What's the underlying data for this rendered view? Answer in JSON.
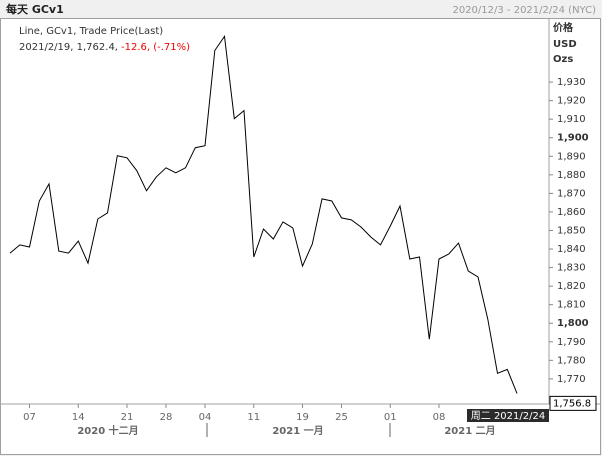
{
  "chart_data": {
    "type": "line",
    "title": "每天 GCv1",
    "date_range": "2020/12/3 - 2021/2/24 (NYC)",
    "legend_line": "Line, GCv1, Trade Price(Last)",
    "legend_info": "2021/2/19, 1,762.4,",
    "legend_change": "-12.6, (-.71%)",
    "y_axis_units": [
      "价格",
      "USD",
      "Ozs"
    ],
    "categories": [
      null,
      null,
      "07",
      null,
      null,
      null,
      null,
      "14",
      null,
      null,
      null,
      null,
      "21",
      null,
      null,
      null,
      "28",
      null,
      null,
      null,
      "04",
      null,
      null,
      null,
      null,
      "11",
      null,
      null,
      null,
      null,
      "19",
      null,
      null,
      null,
      "25",
      null,
      null,
      null,
      null,
      "01",
      null,
      null,
      null,
      null,
      "08",
      null,
      null,
      null,
      null,
      null,
      null,
      null,
      null
    ],
    "x_group_labels": [
      "2020 十二月",
      "2021 一月",
      "2021 二月"
    ],
    "series": [
      {
        "name": "GCv1",
        "color": "#000000",
        "values": [
          1837.8,
          1842.2,
          1841.1,
          1865.9,
          1875.1,
          1838.9,
          1837.8,
          1844.3,
          1832.4,
          1856.2,
          1859.5,
          1890.3,
          1889.2,
          1882.2,
          1871.4,
          1878.9,
          1883.8,
          1881.1,
          1883.8,
          1894.6,
          1895.7,
          1947.0,
          1954.6,
          1910.3,
          1914.6,
          1835.7,
          1850.8,
          1845.4,
          1854.6,
          1851.4,
          1830.8,
          1842.7,
          1867.0,
          1865.9,
          1856.8,
          1855.7,
          1851.9,
          1846.5,
          1842.2,
          1852.4,
          1863.2,
          1834.6,
          1835.7,
          1791.4,
          1834.6,
          1837.3,
          1843.2,
          1828.1,
          1824.9,
          1802.2,
          1773.0,
          1775.1,
          1762.2
        ]
      }
    ],
    "ylim": [
      1757,
      1964
    ],
    "yticks": [
      {
        "value": 1770,
        "label": "1,770"
      },
      {
        "value": 1780,
        "label": "1,780"
      },
      {
        "value": 1790,
        "label": "1,790"
      },
      {
        "value": 1800,
        "label": "1,800"
      },
      {
        "value": 1810,
        "label": "1,810"
      },
      {
        "value": 1820,
        "label": "1,820"
      },
      {
        "value": 1830,
        "label": "1,830"
      },
      {
        "value": 1840,
        "label": "1,840"
      },
      {
        "value": 1850,
        "label": "1,850"
      },
      {
        "value": 1860,
        "label": "1,860"
      },
      {
        "value": 1870,
        "label": "1,870"
      },
      {
        "value": 1880,
        "label": "1,880"
      },
      {
        "value": 1890,
        "label": "1,890"
      },
      {
        "value": 1900,
        "label": "1,900"
      },
      {
        "value": 1910,
        "label": "1,910"
      },
      {
        "value": 1920,
        "label": "1,920"
      },
      {
        "value": 1930,
        "label": "1,930"
      }
    ],
    "last_value": {
      "value": 1756.8,
      "label": "1,756.8"
    },
    "cursor_label": "周二 2021/2/24"
  }
}
